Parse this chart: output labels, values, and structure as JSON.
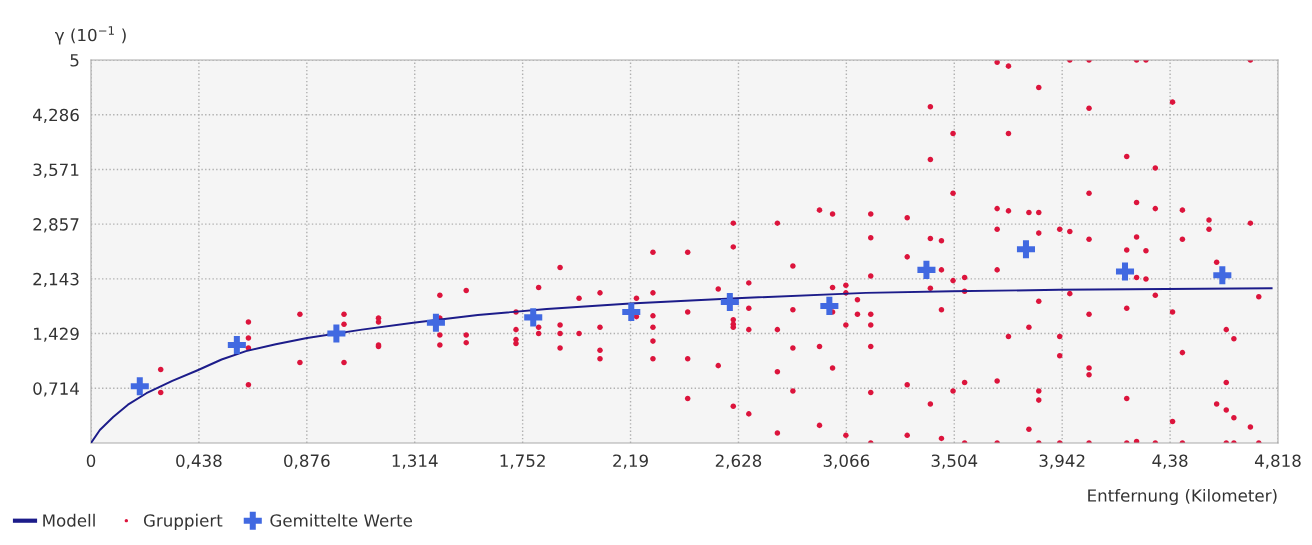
{
  "chart_data": {
    "type": "scatter",
    "ylabel": "γ (10$^{−1}$ )",
    "xlabel": "Entfernung (Kilometer)",
    "xlim": [
      0,
      4.818
    ],
    "ylim": [
      0,
      5
    ],
    "xticks": [
      0,
      {
        "value": 0.438,
        "label": "0,438"
      },
      {
        "value": 0.876,
        "label": "0,876"
      },
      {
        "value": 1.314,
        "label": "1,314"
      },
      {
        "value": 1.752,
        "label": "1,752"
      },
      {
        "value": 2.19,
        "label": "2,19"
      },
      {
        "value": 2.628,
        "label": "2,628"
      },
      {
        "value": 3.066,
        "label": "3,066"
      },
      {
        "value": 3.504,
        "label": "3,504"
      },
      {
        "value": 3.942,
        "label": "3,942"
      },
      {
        "value": 4.38,
        "label": "4,38"
      },
      {
        "value": 4.818,
        "label": "4,818"
      }
    ],
    "yticks": [
      {
        "value": 0.714,
        "label": "0,714"
      },
      {
        "value": 1.429,
        "label": "1,429"
      },
      {
        "value": 2.143,
        "label": "2,143"
      },
      {
        "value": 2.857,
        "label": "2,857"
      },
      {
        "value": 3.571,
        "label": "3,571"
      },
      {
        "value": 4.286,
        "label": "4,286"
      },
      5
    ],
    "grid": true,
    "legend": "bottom left",
    "series": [
      {
        "name": "Modell",
        "type": "line",
        "marker": "none",
        "line_style": "solid",
        "color": "#1c1c8a",
        "x": [
          0,
          0.036,
          0.09,
          0.15,
          0.225,
          0.33,
          0.433,
          0.53,
          0.629,
          0.75,
          0.877,
          1.1,
          1.308,
          1.57,
          1.85,
          2.189,
          2.62,
          3.145,
          3.495,
          3.929,
          4.363,
          4.792
        ],
        "values": [
          0,
          0.17,
          0.34,
          0.5,
          0.65,
          0.81,
          0.95,
          1.09,
          1.2,
          1.29,
          1.37,
          1.48,
          1.57,
          1.67,
          1.75,
          1.82,
          1.89,
          1.96,
          1.98,
          2.0,
          2.01,
          2.02
        ]
      },
      {
        "name": "Gruppiert",
        "marker": "circle",
        "color": "#dc143c",
        "x": [
          0.283,
          0.283,
          0.639,
          0.639,
          0.639,
          0.639,
          0.848,
          0.848,
          1.027,
          1.027,
          1.027,
          1.167,
          1.167,
          1.167,
          1.167,
          1.416,
          1.416,
          1.416,
          1.416,
          1.523,
          1.523,
          1.523,
          1.725,
          1.725,
          1.725,
          1.725,
          1.817,
          1.817,
          1.817,
          1.904,
          1.904,
          1.904,
          1.904,
          1.981,
          1.981,
          2.066,
          2.066,
          2.066,
          2.066,
          2.214,
          2.214,
          2.281,
          2.281,
          2.281,
          2.281,
          2.281,
          2.281,
          2.422,
          2.422,
          2.422,
          2.422,
          2.546,
          2.546,
          2.607,
          2.607,
          2.607,
          2.607,
          2.607,
          2.607,
          2.67,
          2.67,
          2.67,
          2.67,
          2.786,
          2.786,
          2.786,
          2.786,
          2.849,
          2.849,
          2.849,
          2.849,
          2.957,
          2.957,
          2.957,
          3.01,
          3.01,
          3.01,
          3.01,
          3.064,
          3.064,
          3.064,
          3.064,
          3.111,
          3.111,
          3.165,
          3.165,
          3.165,
          3.165,
          3.165,
          3.165,
          3.165,
          3.165,
          3.313,
          3.313,
          3.313,
          3.313,
          3.407,
          3.407,
          3.407,
          3.407,
          3.407,
          3.452,
          3.452,
          3.452,
          3.452,
          3.499,
          3.499,
          3.499,
          3.499,
          3.546,
          3.546,
          3.546,
          3.546,
          3.678,
          3.678,
          3.678,
          3.678,
          3.678,
          3.678,
          3.724,
          3.724,
          3.724,
          3.724,
          3.807,
          3.807,
          3.807,
          3.847,
          3.847,
          3.847,
          3.847,
          3.847,
          3.847,
          3.847,
          3.932,
          3.932,
          3.932,
          3.932,
          3.973,
          3.973,
          3.973,
          4.051,
          4.051,
          4.051,
          4.051,
          4.051,
          4.051,
          4.051,
          4.051,
          4.204,
          4.204,
          4.204,
          4.204,
          4.204,
          4.244,
          4.244,
          4.244,
          4.244,
          4.244,
          4.282,
          4.282,
          4.282,
          4.32,
          4.32,
          4.32,
          4.32,
          4.39,
          4.39,
          4.39,
          4.43,
          4.43,
          4.43,
          4.43,
          4.538,
          4.538,
          4.569,
          4.569,
          4.608,
          4.608,
          4.608,
          4.608,
          4.639,
          4.639,
          4.639,
          4.706,
          4.706,
          4.706,
          4.74,
          4.74
        ],
        "values": [
          0.96,
          0.66,
          1.58,
          1.37,
          1.24,
          0.76,
          1.68,
          1.05,
          1.68,
          1.55,
          1.05,
          1.63,
          1.58,
          1.28,
          1.26,
          1.93,
          1.63,
          1.41,
          1.28,
          1.99,
          1.41,
          1.31,
          1.71,
          1.48,
          1.35,
          1.3,
          2.03,
          1.51,
          1.43,
          2.29,
          1.54,
          1.43,
          1.24,
          1.89,
          1.43,
          1.96,
          1.51,
          1.21,
          1.1,
          1.89,
          1.65,
          2.49,
          1.96,
          1.66,
          1.51,
          1.33,
          1.1,
          2.49,
          1.71,
          1.1,
          0.58,
          2.01,
          1.01,
          2.87,
          2.56,
          1.61,
          1.55,
          1.51,
          0.48,
          2.09,
          1.76,
          1.48,
          0.38,
          2.87,
          1.48,
          0.93,
          0.13,
          2.31,
          1.74,
          1.24,
          0.68,
          3.04,
          1.26,
          0.23,
          2.99,
          2.03,
          1.71,
          0.98,
          2.06,
          1.96,
          1.54,
          0.1,
          1.87,
          1.68,
          2.99,
          2.68,
          2.18,
          1.68,
          1.54,
          1.26,
          0.66,
          0,
          2.94,
          2.43,
          0.76,
          0.1,
          4.39,
          3.7,
          2.67,
          2.02,
          0.51,
          2.64,
          2.26,
          1.74,
          0.06,
          4.04,
          3.26,
          2.12,
          0.68,
          2.16,
          1.98,
          0.79,
          0,
          4.97,
          3.06,
          2.79,
          2.26,
          0.81,
          0,
          4.92,
          4.04,
          3.03,
          1.39,
          3.01,
          1.51,
          0.18,
          4.64,
          3.01,
          2.74,
          1.85,
          0.68,
          0.56,
          0,
          2.79,
          1.39,
          1.14,
          0,
          5,
          2.76,
          1.95,
          5,
          4.37,
          3.26,
          2.66,
          1.68,
          0.98,
          0.89,
          0,
          3.74,
          2.52,
          1.76,
          0.58,
          0,
          5,
          3.14,
          2.69,
          2.16,
          0.02,
          5,
          2.51,
          2.14,
          3.59,
          3.06,
          1.93,
          0,
          4.45,
          1.71,
          0.28,
          3.04,
          2.66,
          1.18,
          0,
          2.91,
          2.79,
          2.36,
          0.51,
          1.48,
          0.79,
          0.43,
          0,
          1.36,
          0.33,
          0,
          5,
          2.87,
          0.21,
          1.91,
          0
        ]
      },
      {
        "name": "Gemittelte Werte",
        "marker": "cross",
        "color": "#4169e1",
        "x": [
          0.198,
          0.592,
          0.996,
          1.4,
          1.795,
          2.193,
          2.593,
          2.997,
          3.391,
          3.795,
          4.197,
          4.592
        ],
        "values": [
          0.74,
          1.28,
          1.43,
          1.57,
          1.64,
          1.71,
          1.84,
          1.79,
          2.26,
          2.53,
          2.24,
          2.19
        ]
      }
    ]
  }
}
